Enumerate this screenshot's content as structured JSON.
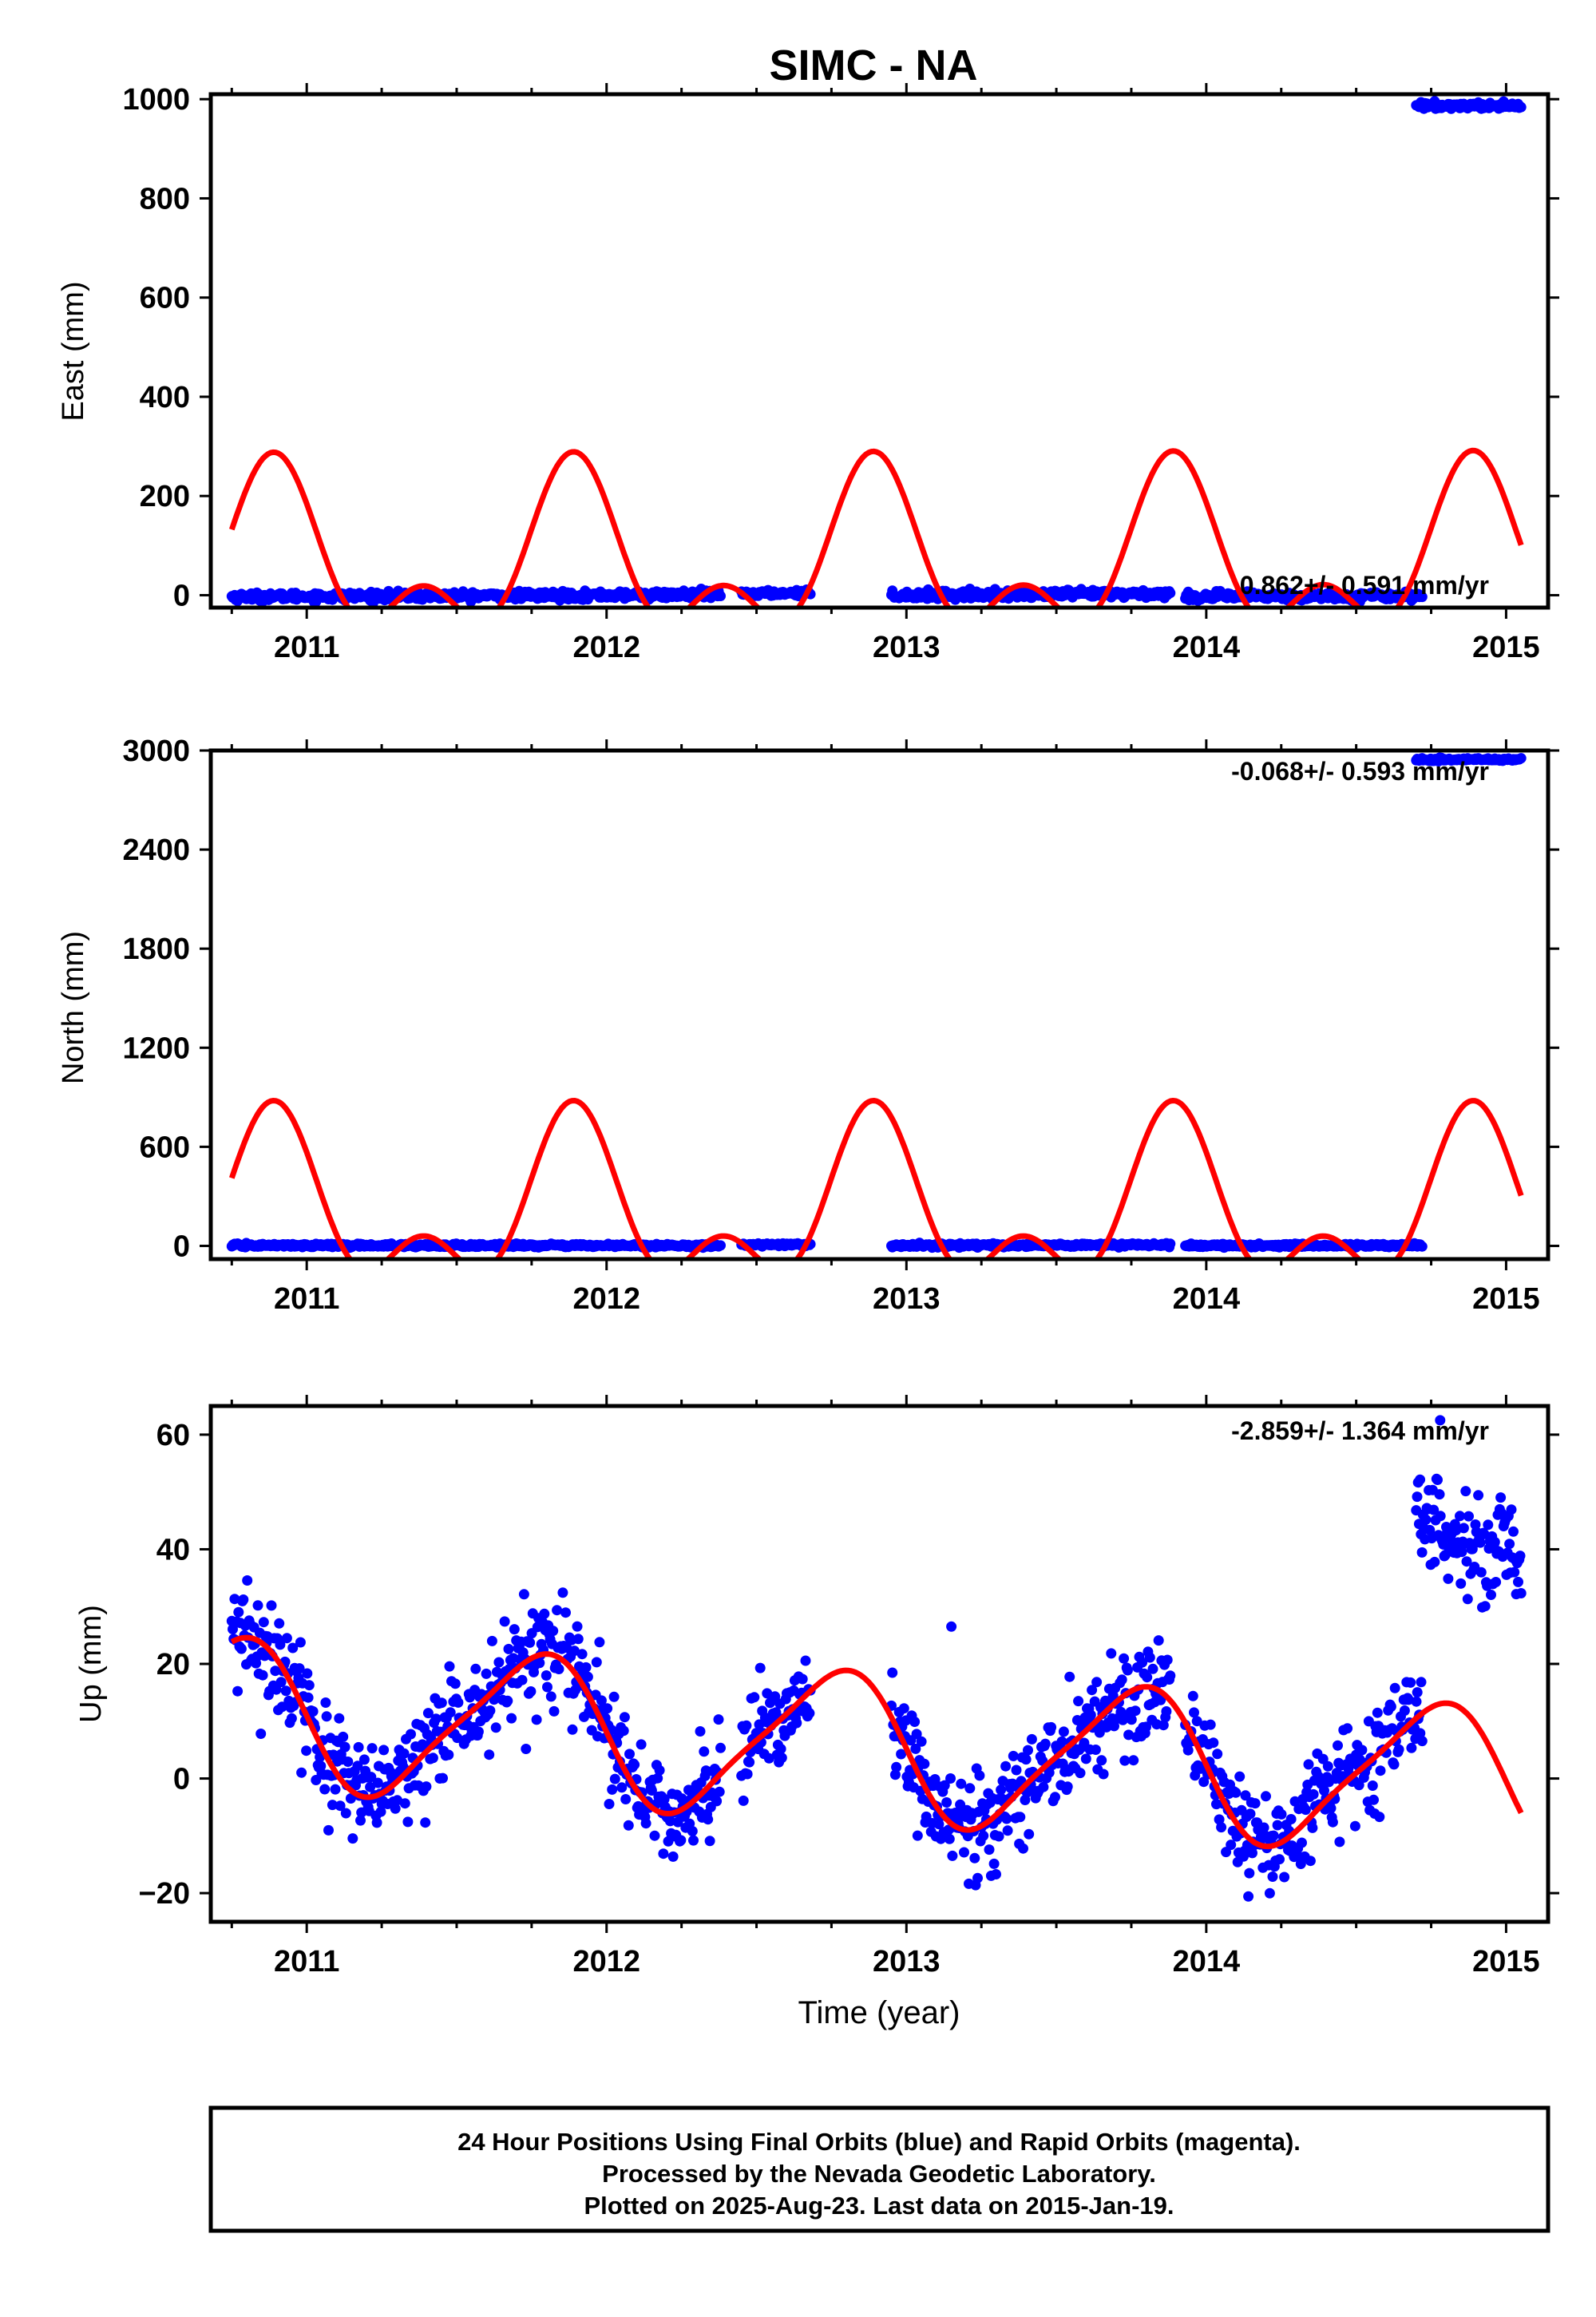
{
  "chart_data": [
    {
      "type": "scatter",
      "title": "SIMC - NA",
      "ylabel": "East (mm)",
      "xlabel": "",
      "xlim": [
        2010.68,
        2015.14
      ],
      "ylim": [
        -25,
        1010
      ],
      "xticks": [
        "2011",
        "2012",
        "2013",
        "2014",
        "2015"
      ],
      "yticks": [
        "0",
        "200",
        "400",
        "600",
        "800",
        "1000"
      ],
      "rate_label": "0.862+/- 0.591 mm/yr",
      "grid": false,
      "series": [
        {
          "color": "#0000ff",
          "kind": "points",
          "segments": [
            {
              "x_start": 2010.75,
              "x_end": 2012.38,
              "y_start": -3,
              "y_end": 1,
              "noise": 4
            },
            {
              "x_start": 2012.45,
              "x_end": 2012.68,
              "y_start": 3,
              "y_end": 5,
              "noise": 3
            },
            {
              "x_start": 2012.95,
              "x_end": 2013.88,
              "y_start": 0,
              "y_end": 3,
              "noise": 4
            },
            {
              "x_start": 2013.93,
              "x_end": 2014.72,
              "y_start": -3,
              "y_end": -1,
              "noise": 4
            },
            {
              "x_start": 2014.7,
              "x_end": 2015.05,
              "y_start": 987,
              "y_end": 987,
              "noise": 3
            }
          ]
        },
        {
          "color": "#ff0000",
          "kind": "seasonal-fit",
          "offset": 65,
          "annual_amp": 135,
          "annual_peak": 2010.89,
          "semiannual_amp": 90,
          "semiannual_peak": 2010.89,
          "trend": 0.862
        }
      ]
    },
    {
      "type": "scatter",
      "title": "",
      "ylabel": "North (mm)",
      "xlabel": "",
      "xlim": [
        2010.68,
        2015.14
      ],
      "ylim": [
        -80,
        3000
      ],
      "xticks": [
        "2011",
        "2012",
        "2013",
        "2014",
        "2015"
      ],
      "yticks": [
        "0",
        "600",
        "1200",
        "1800",
        "2400",
        "3000"
      ],
      "rate_label": "-0.068+/- 0.593 mm/yr",
      "grid": false,
      "series": [
        {
          "color": "#0000ff",
          "kind": "points",
          "segments": [
            {
              "x_start": 2010.75,
              "x_end": 2012.38,
              "y_start": 3,
              "y_end": 2,
              "noise": 5
            },
            {
              "x_start": 2012.45,
              "x_end": 2012.68,
              "y_start": 8,
              "y_end": 8,
              "noise": 4
            },
            {
              "x_start": 2012.95,
              "x_end": 2013.88,
              "y_start": 2,
              "y_end": 6,
              "noise": 5
            },
            {
              "x_start": 2013.93,
              "x_end": 2014.72,
              "y_start": 2,
              "y_end": 2,
              "noise": 5
            },
            {
              "x_start": 2014.7,
              "x_end": 2015.05,
              "y_start": 2945,
              "y_end": 2945,
              "noise": 4
            }
          ]
        },
        {
          "color": "#ff0000",
          "kind": "seasonal-fit",
          "offset": 200,
          "annual_amp": 410,
          "annual_peak": 2010.89,
          "semiannual_amp": 270,
          "semiannual_peak": 2010.89,
          "trend": -0.068
        }
      ]
    },
    {
      "type": "scatter",
      "title": "",
      "ylabel": "Up (mm)",
      "xlabel": "Time (year)",
      "xlim": [
        2010.68,
        2015.14
      ],
      "ylim": [
        -25,
        65
      ],
      "xticks": [
        "2011",
        "2012",
        "2013",
        "2014",
        "2015"
      ],
      "yticks": [
        "−20",
        "0",
        "20",
        "40",
        "60"
      ],
      "rate_label": "-2.859+/- 1.364 mm/yr",
      "grid": false,
      "series": [
        {
          "color": "#0000ff",
          "kind": "points",
          "segments": [
            {
              "x_start": 2010.75,
              "x_end": 2012.38,
              "noise": 4.5
            },
            {
              "x_start": 2012.45,
              "x_end": 2012.68,
              "noise": 4.5
            },
            {
              "x_start": 2012.95,
              "x_end": 2013.88,
              "noise": 4.5
            },
            {
              "x_start": 2013.93,
              "x_end": 2014.72,
              "noise": 4.5
            },
            {
              "x_start": 2014.7,
              "x_end": 2015.05,
              "y_start": 47,
              "y_end": 37,
              "noise": 5
            }
          ],
          "outliers": [
            [
              2013.15,
              26.5
            ],
            [
              2014.78,
              62.5
            ]
          ]
        },
        {
          "color": "#ff0000",
          "kind": "seasonal-fit",
          "offset": 5.5,
          "annual_amp": 12.5,
          "annual_peak": 2010.75,
          "semiannual_amp": 2.5,
          "semiannual_peak": 2010.88,
          "trend": -2.859
        }
      ]
    }
  ],
  "footer": {
    "line1": "24 Hour Positions Using Final Orbits (blue) and Rapid Orbits (magenta).",
    "line2": "Processed by the Nevada Geodetic Laboratory.",
    "line3": "Plotted on 2025-Aug-23. Last data on 2015-Jan-19."
  }
}
